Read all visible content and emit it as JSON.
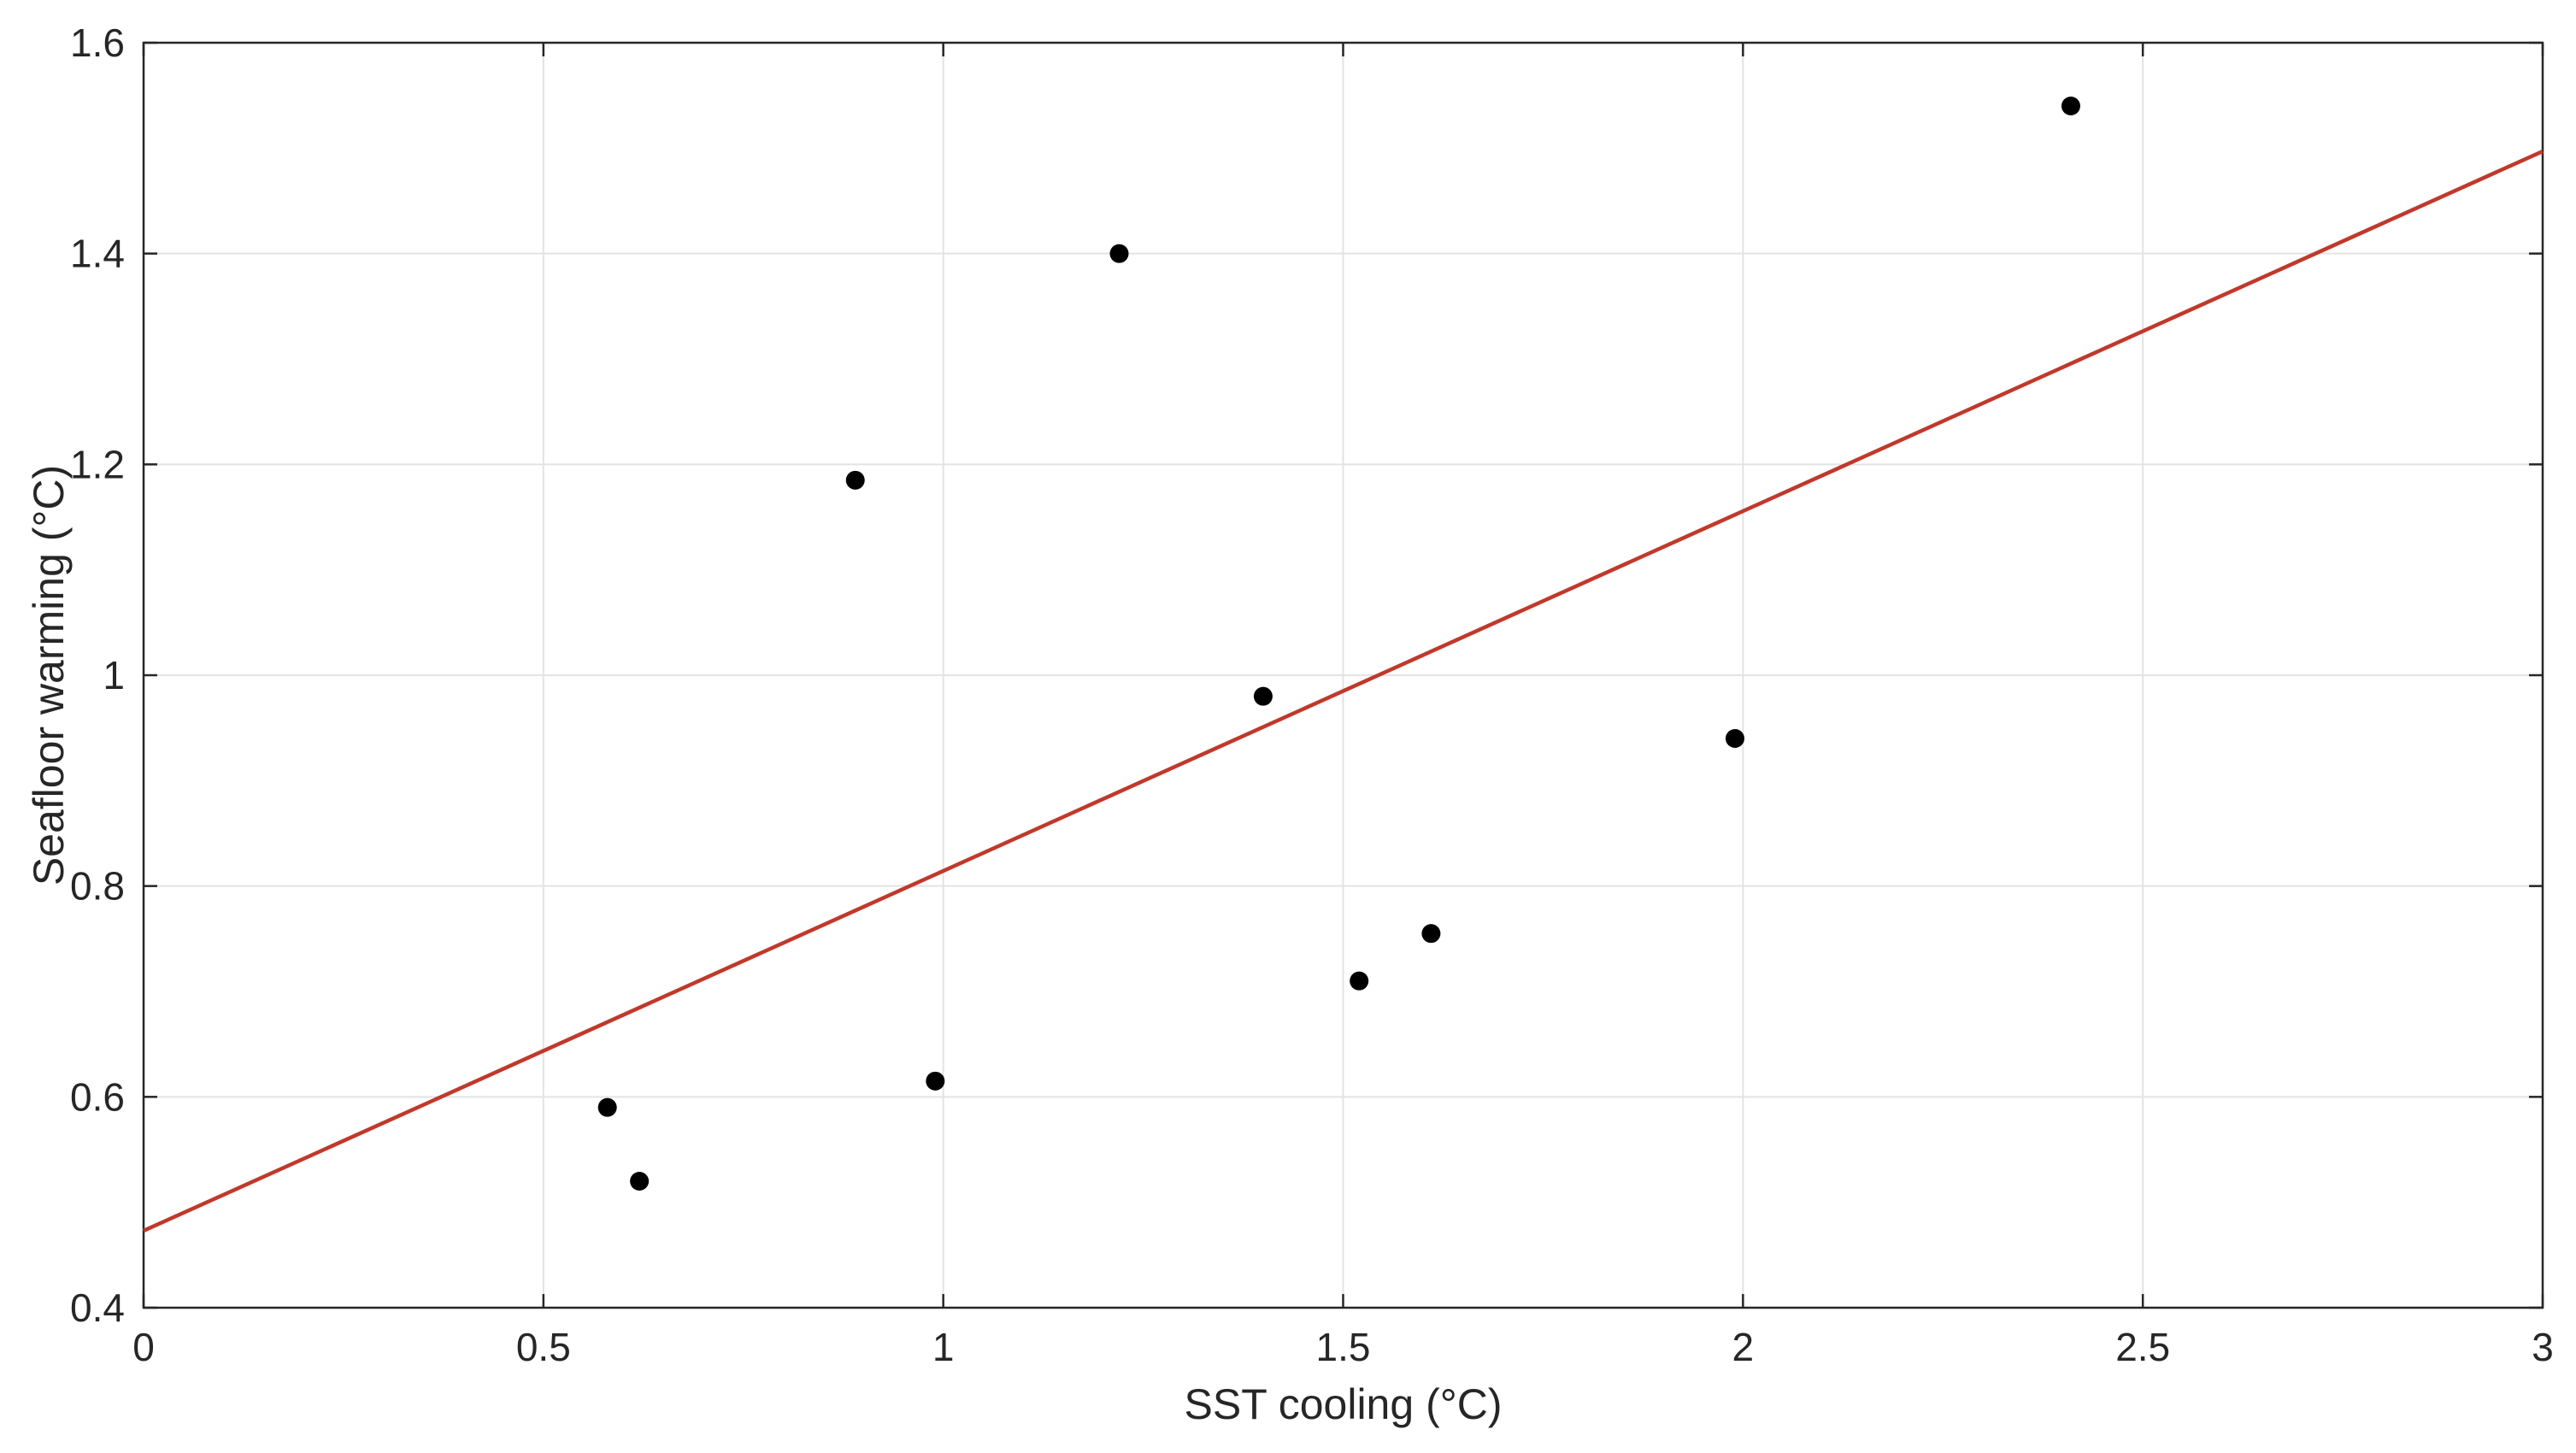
{
  "chart_data": {
    "type": "scatter",
    "title": "",
    "xlabel": "SST cooling (°C)",
    "ylabel": "Seafloor warming (°C)",
    "xlim": [
      0,
      3
    ],
    "ylim": [
      0.4,
      1.6
    ],
    "xticks": [
      0,
      0.5,
      1,
      1.5,
      2,
      2.5,
      3
    ],
    "yticks": [
      0.4,
      0.6,
      0.8,
      1,
      1.2,
      1.4,
      1.6
    ],
    "xtick_labels": [
      "0",
      "0.5",
      "1",
      "1.5",
      "2",
      "2.5",
      "3"
    ],
    "ytick_labels": [
      "0.4",
      "0.6",
      "0.8",
      "1",
      "1.2",
      "1.4",
      "1.6"
    ],
    "grid": true,
    "points": {
      "x": [
        0.58,
        0.62,
        0.89,
        0.99,
        1.22,
        1.4,
        1.52,
        1.61,
        1.99,
        2.41
      ],
      "y": [
        0.59,
        0.52,
        1.185,
        0.615,
        1.4,
        0.98,
        0.71,
        0.755,
        0.94,
        1.54
      ]
    },
    "fit_line": {
      "x": [
        0,
        3
      ],
      "y": [
        0.473,
        1.497
      ]
    },
    "colors": {
      "points": "#000000",
      "fit_line": "#c0392b",
      "grid": "#e3e3e3",
      "axes": "#262626"
    }
  }
}
